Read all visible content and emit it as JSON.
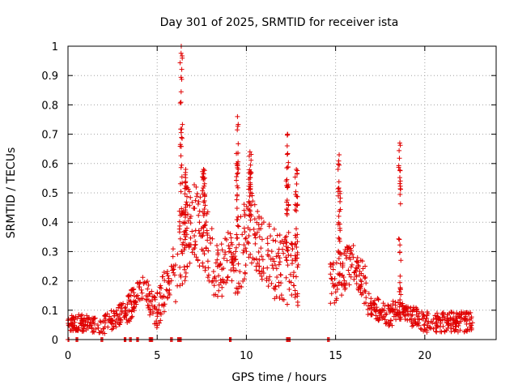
{
  "chart_data": {
    "type": "scatter",
    "title": "Day 301 of 2025, SRMTID for receiver ista",
    "xlabel": "GPS time / hours",
    "ylabel": "SRMTID / TECUs",
    "xlim": [
      0,
      24
    ],
    "ylim": [
      0,
      1
    ],
    "xticks": [
      0,
      5,
      10,
      15,
      20
    ],
    "yticks": [
      0,
      0.1,
      0.2,
      0.3,
      0.4,
      0.5,
      0.6,
      0.7,
      0.8,
      0.9,
      1
    ],
    "xtick_labels": [
      "0",
      "5",
      "10",
      "15",
      "20"
    ],
    "ytick_labels": [
      "0",
      "0.1",
      "0.2",
      "0.3",
      "0.4",
      "0.5",
      "0.6",
      "0.7",
      "0.8",
      "0.9",
      "1"
    ],
    "grid": true,
    "marker": "+",
    "series_color": "#e00000",
    "series": [
      {
        "name": "SRMTID",
        "segments": [
          {
            "x": [
              0.0,
              2.0
            ],
            "base": [
              0.06,
              0.05
            ],
            "spread": 0.03
          },
          {
            "x": [
              2.0,
              3.3
            ],
            "base": [
              0.05,
              0.1
            ],
            "spread": 0.035
          },
          {
            "x": [
              3.3,
              4.3
            ],
            "base": [
              0.1,
              0.18
            ],
            "spread": 0.05
          },
          {
            "x": [
              4.3,
              5.0
            ],
            "base": [
              0.17,
              0.08
            ],
            "spread": 0.05
          },
          {
            "x": [
              5.0,
              6.0
            ],
            "base": [
              0.1,
              0.26
            ],
            "spread": 0.07
          },
          {
            "x": [
              6.0,
              7.0
            ],
            "base": [
              0.26,
              0.42
            ],
            "spread": 0.15
          },
          {
            "x": [
              7.0,
              8.1
            ],
            "base": [
              0.42,
              0.3
            ],
            "spread": 0.13
          },
          {
            "x": [
              8.1,
              9.3
            ],
            "base": [
              0.2,
              0.3
            ],
            "spread": 0.1
          },
          {
            "x": [
              9.3,
              10.3
            ],
            "base": [
              0.25,
              0.4
            ],
            "spread": 0.14
          },
          {
            "x": [
              10.3,
              11.5
            ],
            "base": [
              0.38,
              0.26
            ],
            "spread": 0.12
          },
          {
            "x": [
              11.5,
              12.9
            ],
            "base": [
              0.26,
              0.2
            ],
            "spread": 0.12
          },
          {
            "x": [
              14.7,
              16.0
            ],
            "base": [
              0.18,
              0.28
            ],
            "spread": 0.08
          },
          {
            "x": [
              16.0,
              16.8
            ],
            "base": [
              0.28,
              0.16
            ],
            "spread": 0.07
          },
          {
            "x": [
              16.8,
              18.2
            ],
            "base": [
              0.12,
              0.08
            ],
            "spread": 0.04
          },
          {
            "x": [
              18.2,
              19.7
            ],
            "base": [
              0.1,
              0.07
            ],
            "spread": 0.035
          },
          {
            "x": [
              19.7,
              22.7
            ],
            "base": [
              0.06,
              0.06
            ],
            "spread": 0.035
          }
        ],
        "spikes": [
          {
            "x": 6.35,
            "ymin": 0.3,
            "ymax": 1.0
          },
          {
            "x": 6.6,
            "ymin": 0.3,
            "ymax": 0.58
          },
          {
            "x": 7.6,
            "ymin": 0.35,
            "ymax": 0.58
          },
          {
            "x": 9.5,
            "ymin": 0.3,
            "ymax": 0.76
          },
          {
            "x": 10.2,
            "ymin": 0.35,
            "ymax": 0.64
          },
          {
            "x": 12.3,
            "ymin": 0.25,
            "ymax": 0.7
          },
          {
            "x": 12.8,
            "ymin": 0.2,
            "ymax": 0.58
          },
          {
            "x": 15.2,
            "ymin": 0.2,
            "ymax": 0.63
          },
          {
            "x": 18.6,
            "ymin": 0.1,
            "ymax": 0.67
          }
        ],
        "zero_markers": [
          0.0,
          0.5,
          1.9,
          3.2,
          3.5,
          3.9,
          4.6,
          4.7,
          5.8,
          6.2,
          6.3,
          9.1,
          12.3,
          12.4,
          14.6
        ]
      }
    ]
  }
}
